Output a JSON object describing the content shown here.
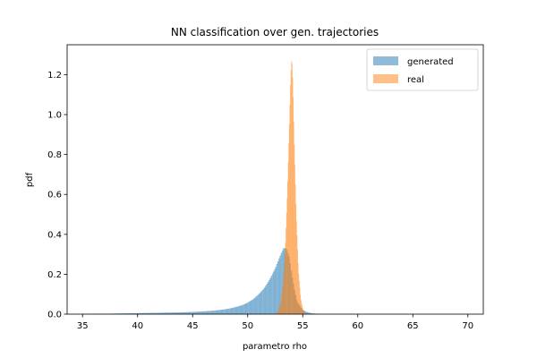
{
  "chart_data": {
    "type": "histogram",
    "title": "NN classification over gen. trajectories",
    "xlabel": "parametro rho",
    "ylabel": "pdf",
    "xlim": [
      33.6,
      71.4
    ],
    "ylim": [
      0,
      1.35
    ],
    "xticks": [
      35,
      40,
      45,
      50,
      55,
      60,
      65,
      70
    ],
    "yticks": [
      0.0,
      0.2,
      0.4,
      0.6,
      0.8,
      1.0,
      1.2
    ],
    "xtick_labels": [
      "35",
      "40",
      "45",
      "50",
      "55",
      "60",
      "65",
      "70"
    ],
    "ytick_labels": [
      "0.0",
      "0.2",
      "0.4",
      "0.6",
      "0.8",
      "1.0",
      "1.2"
    ],
    "grid": false,
    "legend_position": "top-right",
    "legend": [
      "generated",
      "real"
    ],
    "series": [
      {
        "name": "generated",
        "color": "#1f77b4",
        "alpha": 0.5,
        "bin_centers": [
          35,
          36,
          37,
          38,
          39,
          40,
          41,
          42,
          43,
          44,
          45,
          46,
          47,
          47.5,
          48,
          48.5,
          49,
          49.5,
          50,
          50.5,
          51,
          51.5,
          52,
          52.5,
          53,
          53.25,
          53.5,
          53.75,
          54,
          54.25,
          54.5,
          55,
          55.5,
          56,
          57,
          58,
          60,
          62,
          65,
          68,
          70
        ],
        "density": [
          0.001,
          0.002,
          0.002,
          0.003,
          0.004,
          0.005,
          0.006,
          0.007,
          0.008,
          0.009,
          0.011,
          0.014,
          0.018,
          0.021,
          0.025,
          0.03,
          0.037,
          0.045,
          0.058,
          0.075,
          0.1,
          0.13,
          0.175,
          0.23,
          0.3,
          0.33,
          0.33,
          0.29,
          0.2,
          0.12,
          0.06,
          0.02,
          0.008,
          0.003,
          0.001,
          0.0005,
          0.0003,
          0.0002,
          0.0001,
          0.0001,
          0.0001
        ]
      },
      {
        "name": "real",
        "color": "#ff7f0e",
        "alpha": 0.5,
        "bin_centers": [
          52.6,
          52.8,
          53.0,
          53.2,
          53.4,
          53.6,
          53.8,
          53.9,
          54.0,
          54.1,
          54.2,
          54.4,
          54.6,
          54.8,
          55.0,
          55.2
        ],
        "density": [
          0.005,
          0.02,
          0.06,
          0.15,
          0.32,
          0.62,
          1.0,
          1.2,
          1.29,
          1.15,
          0.9,
          0.5,
          0.22,
          0.08,
          0.025,
          0.005
        ]
      }
    ]
  }
}
